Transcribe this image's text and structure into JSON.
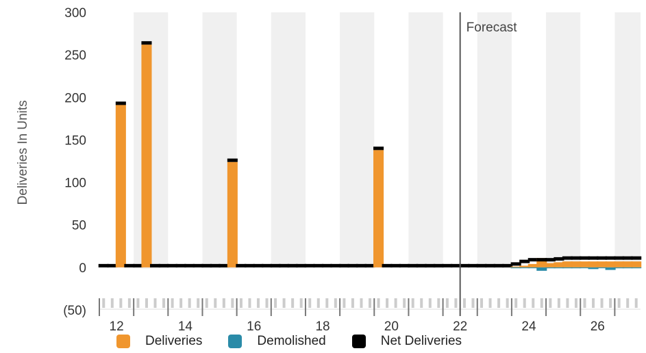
{
  "colors": {
    "deliveries": "#f0962e",
    "demolished": "#2a8ba8",
    "net": "#000000",
    "band": "#f0f0f0",
    "axis": "#777777"
  },
  "chart_data": {
    "type": "bar",
    "ylabel": "Deliveries In Units",
    "ylim": [
      -50,
      300
    ],
    "yticks": [
      -50,
      0,
      50,
      100,
      150,
      200,
      250,
      300
    ],
    "ytick_labels": [
      "(50)",
      "0",
      "50",
      "100",
      "150",
      "200",
      "250",
      "300"
    ],
    "xlim": [
      11.5,
      27.25
    ],
    "xticks": [
      12,
      14,
      16,
      18,
      20,
      22,
      24,
      26
    ],
    "xtick_labels": [
      "12",
      "14",
      "16",
      "18",
      "20",
      "22",
      "24",
      "26"
    ],
    "forecast_x": 22,
    "forecast_label": "Forecast",
    "grid": false,
    "legend_position": "bottom",
    "x": [
      11.625,
      11.875,
      12.125,
      12.375,
      12.625,
      12.875,
      13.125,
      13.375,
      13.625,
      13.875,
      14.125,
      14.375,
      14.625,
      14.875,
      15.125,
      15.375,
      15.625,
      15.875,
      16.125,
      16.375,
      16.625,
      16.875,
      17.125,
      17.375,
      17.625,
      17.875,
      18.125,
      18.375,
      18.625,
      18.875,
      19.125,
      19.375,
      19.625,
      19.875,
      20.125,
      20.375,
      20.625,
      20.875,
      21.125,
      21.375,
      21.625,
      21.875,
      22.125,
      22.375,
      22.625,
      22.875,
      23.125,
      23.375,
      23.625,
      23.875,
      24.125,
      24.375,
      24.625,
      24.875,
      25.125,
      25.375,
      25.625,
      25.875,
      26.125,
      26.375,
      26.625,
      26.875,
      27.125
    ],
    "series": [
      {
        "name": "Deliveries",
        "values": [
          0,
          0,
          191,
          0,
          0,
          262,
          0,
          0,
          0,
          0,
          0,
          0,
          0,
          0,
          0,
          124,
          0,
          0,
          0,
          0,
          0,
          0,
          0,
          0,
          0,
          0,
          0,
          0,
          0,
          0,
          0,
          0,
          138,
          0,
          0,
          0,
          0,
          0,
          0,
          0,
          0,
          0,
          0,
          0,
          0,
          0,
          0,
          0,
          1,
          2,
          4,
          11,
          5,
          6,
          7,
          7,
          7,
          7,
          7,
          7,
          7,
          7,
          7
        ]
      },
      {
        "name": "Demolished",
        "values": [
          0,
          0,
          0,
          0,
          0,
          0,
          0,
          0,
          0,
          0,
          0,
          0,
          0,
          0,
          0,
          0,
          0,
          0,
          0,
          0,
          0,
          0,
          0,
          0,
          0,
          0,
          0,
          0,
          0,
          0,
          0,
          0,
          0,
          0,
          0,
          0,
          0,
          0,
          0,
          0,
          0,
          0,
          0,
          0,
          0,
          0,
          0,
          0,
          -1,
          -1,
          -1,
          -4,
          -1,
          -1,
          -1,
          -1,
          -1,
          -2,
          -1,
          -3,
          -1,
          -1,
          -1
        ]
      },
      {
        "name": "Net Deliveries",
        "values": [
          0,
          0,
          191,
          0,
          0,
          262,
          0,
          0,
          0,
          0,
          0,
          0,
          0,
          0,
          0,
          124,
          0,
          0,
          0,
          0,
          0,
          0,
          0,
          0,
          0,
          0,
          0,
          0,
          0,
          0,
          0,
          0,
          138,
          0,
          0,
          0,
          0,
          0,
          0,
          0,
          0,
          0,
          0,
          0,
          0,
          0,
          0,
          0,
          2,
          5,
          7,
          7,
          7,
          8,
          9,
          9,
          9,
          9,
          9,
          9,
          9,
          9,
          9
        ]
      }
    ]
  }
}
